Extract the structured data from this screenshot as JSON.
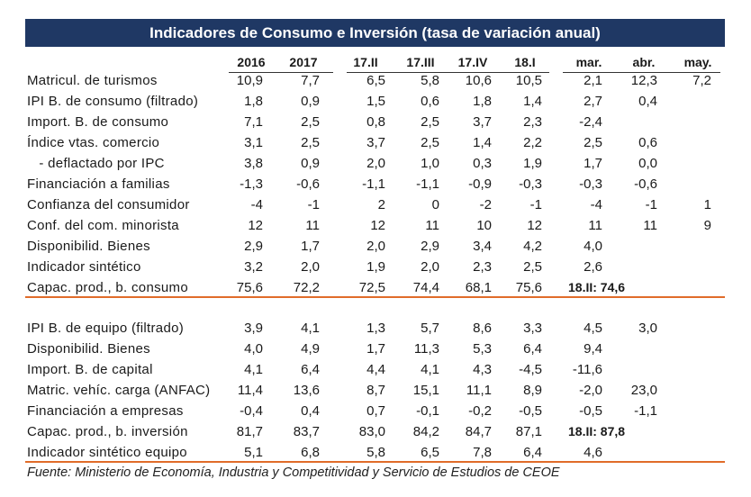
{
  "title": "Indicadores de Consumo e Inversión (tasa de variación anual)",
  "columns": [
    "2016",
    "2017",
    "17.II",
    "17.III",
    "17.IV",
    "18.I",
    "mar.",
    "abr.",
    "may."
  ],
  "consumo_rows": [
    {
      "label": "Matricul. de turismos",
      "values": [
        "10,9",
        "7,7",
        "6,5",
        "5,8",
        "10,6",
        "10,5",
        "2,1",
        "12,3",
        "7,2"
      ]
    },
    {
      "label": "IPI B. de consumo (filtrado)",
      "values": [
        "1,8",
        "0,9",
        "1,5",
        "0,6",
        "1,8",
        "1,4",
        "2,7",
        "0,4",
        ""
      ]
    },
    {
      "label": "Import. B. de consumo",
      "values": [
        "7,1",
        "2,5",
        "0,8",
        "2,5",
        "3,7",
        "2,3",
        "-2,4",
        "",
        ""
      ]
    },
    {
      "label": "Índice vtas. comercio",
      "values": [
        "3,1",
        "2,5",
        "3,7",
        "2,5",
        "1,4",
        "2,2",
        "2,5",
        "0,6",
        ""
      ]
    },
    {
      "label": "   - deflactado por IPC",
      "values": [
        "3,8",
        "0,9",
        "2,0",
        "1,0",
        "0,3",
        "1,9",
        "1,7",
        "0,0",
        ""
      ]
    },
    {
      "label": "Financiación a familias",
      "values": [
        "-1,3",
        "-0,6",
        "-1,1",
        "-1,1",
        "-0,9",
        "-0,3",
        "-0,3",
        "-0,6",
        ""
      ]
    },
    {
      "label": "Confianza del consumidor",
      "values": [
        "-4",
        "-1",
        "2",
        "0",
        "-2",
        "-1",
        "-4",
        "-1",
        "1"
      ]
    },
    {
      "label": "Conf. del com. minorista",
      "values": [
        "12",
        "11",
        "12",
        "11",
        "10",
        "12",
        "11",
        "11",
        "9"
      ]
    },
    {
      "label": "Disponibilid. Bienes",
      "values": [
        "2,9",
        "1,7",
        "2,0",
        "2,9",
        "3,4",
        "4,2",
        "4,0",
        "",
        ""
      ]
    },
    {
      "label": "Indicador sintético",
      "values": [
        "3,2",
        "2,0",
        "1,9",
        "2,0",
        "2,3",
        "2,5",
        "2,6",
        "",
        ""
      ]
    },
    {
      "label": "Capac. prod., b. consumo",
      "values": [
        "75,6",
        "72,2",
        "72,5",
        "74,4",
        "68,1",
        "75,6",
        "",
        "",
        ""
      ],
      "span_text": "18.II: 74,6"
    }
  ],
  "inversion_rows": [
    {
      "label": "IPI B. de equipo (filtrado)",
      "values": [
        "3,9",
        "4,1",
        "1,3",
        "5,7",
        "8,6",
        "3,3",
        "4,5",
        "3,0",
        ""
      ]
    },
    {
      "label": "Disponibilid. Bienes",
      "values": [
        "4,0",
        "4,9",
        "1,7",
        "11,3",
        "5,3",
        "6,4",
        "9,4",
        "",
        ""
      ]
    },
    {
      "label": "Import. B. de capital",
      "values": [
        "4,1",
        "6,4",
        "4,4",
        "4,1",
        "4,3",
        "-4,5",
        "-11,6",
        "",
        ""
      ]
    },
    {
      "label": "Matric. vehíc. carga (ANFAC)",
      "values": [
        "11,4",
        "13,6",
        "8,7",
        "15,1",
        "11,1",
        "8,9",
        "-2,0",
        "23,0",
        ""
      ]
    },
    {
      "label": "Financiación a empresas",
      "values": [
        "-0,4",
        "0,4",
        "0,7",
        "-0,1",
        "-0,2",
        "-0,5",
        "-0,5",
        "-1,1",
        ""
      ]
    },
    {
      "label": "Capac. prod., b. inversión",
      "values": [
        "81,7",
        "83,7",
        "83,0",
        "84,2",
        "84,7",
        "87,1",
        "",
        "",
        ""
      ],
      "span_text": "18.II: 87,8"
    },
    {
      "label": "Indicador sintético equipo",
      "values": [
        "5,1",
        "6,8",
        "5,8",
        "6,5",
        "7,8",
        "6,4",
        "4,6",
        "",
        ""
      ]
    }
  ],
  "source": "Fuente: Ministerio de Economía, Industria y Competitividad y Servicio de Estudios de CEOE",
  "colors": {
    "title_bg": "#1f3864",
    "accent_line": "#e06c2a"
  }
}
